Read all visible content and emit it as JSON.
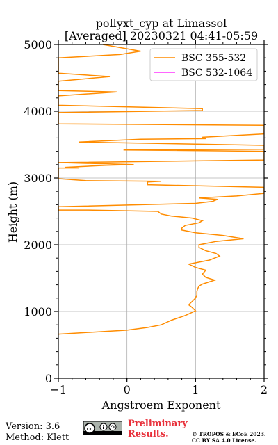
{
  "footer": {
    "version": "Version: 3.6",
    "method": "Method: Klett",
    "preliminary_line1": "Preliminary",
    "preliminary_line2": "Results.",
    "copyright_line1": "© TROPOS & ECoE 2023.",
    "copyright_line2": "CC BY SA 4.0 License.",
    "badge_icon": "cc-by-sa-icon"
  },
  "chart_data": {
    "type": "line",
    "title": "pollyxt_cyp at Limassol",
    "subtitle": "[Averaged] 20230321 04:41-05:59",
    "xlabel": "Angstroem Exponent",
    "ylabel": "Height (m)",
    "xlim": [
      -1,
      2
    ],
    "ylim": [
      0,
      5000
    ],
    "xticks": [
      -1,
      0,
      1,
      2
    ],
    "xtick_labels": [
      "−1",
      "0",
      "1",
      "2"
    ],
    "yticks": [
      0,
      1000,
      2000,
      3000,
      4000,
      5000
    ],
    "ytick_labels": [
      "0",
      "1000",
      "2000",
      "3000",
      "4000",
      "5000"
    ],
    "grid": true,
    "legend_position": "top-right",
    "series": [
      {
        "name": "BSC 355-532",
        "color": "#ff8c00",
        "points": [
          [
            -1.0,
            660
          ],
          [
            0.0,
            720
          ],
          [
            0.3,
            760
          ],
          [
            0.5,
            800
          ],
          [
            0.65,
            870
          ],
          [
            0.85,
            940
          ],
          [
            1.0,
            1010
          ],
          [
            0.95,
            1060
          ],
          [
            0.9,
            1100
          ],
          [
            0.95,
            1150
          ],
          [
            1.0,
            1200
          ],
          [
            1.02,
            1250
          ],
          [
            1.02,
            1300
          ],
          [
            1.03,
            1340
          ],
          [
            1.05,
            1380
          ],
          [
            1.1,
            1410
          ],
          [
            1.28,
            1470
          ],
          [
            1.15,
            1510
          ],
          [
            1.1,
            1560
          ],
          [
            1.15,
            1620
          ],
          [
            1.0,
            1660
          ],
          [
            0.9,
            1710
          ],
          [
            1.2,
            1770
          ],
          [
            1.35,
            1830
          ],
          [
            1.3,
            1870
          ],
          [
            1.15,
            1910
          ],
          [
            1.05,
            1960
          ],
          [
            1.05,
            2000
          ],
          [
            1.3,
            2050
          ],
          [
            1.7,
            2090
          ],
          [
            1.4,
            2140
          ],
          [
            1.0,
            2180
          ],
          [
            0.8,
            2220
          ],
          [
            0.8,
            2250
          ],
          [
            0.85,
            2290
          ],
          [
            1.05,
            2330
          ],
          [
            1.1,
            2360
          ],
          [
            0.95,
            2400
          ],
          [
            0.65,
            2430
          ],
          [
            0.5,
            2460
          ],
          [
            0.45,
            2500
          ],
          [
            -0.6,
            2520
          ],
          [
            -1.0,
            2520
          ],
          [
            -1.0,
            2570
          ],
          [
            1.0,
            2620
          ],
          [
            1.25,
            2650
          ],
          [
            1.32,
            2680
          ],
          [
            1.05,
            2700
          ],
          [
            1.6,
            2730
          ],
          [
            2.0,
            2770
          ],
          [
            2.0,
            2860
          ],
          [
            0.3,
            2900
          ],
          [
            0.3,
            2940
          ],
          [
            0.5,
            2950
          ],
          [
            -0.6,
            2960
          ],
          [
            -1.0,
            2990
          ],
          [
            -1.0,
            3150
          ],
          [
            -0.7,
            3150
          ],
          [
            -0.9,
            3160
          ],
          [
            -0.3,
            3190
          ],
          [
            0.1,
            3200
          ],
          [
            -1.0,
            3230
          ],
          [
            2.0,
            3270
          ],
          [
            2.0,
            3400
          ],
          [
            -0.05,
            3420
          ],
          [
            2.0,
            3430
          ],
          [
            2.0,
            3490
          ],
          [
            -0.7,
            3540
          ],
          [
            0.2,
            3580
          ],
          [
            1.15,
            3590
          ],
          [
            1.1,
            3610
          ],
          [
            2.0,
            3660
          ],
          [
            2.0,
            3790
          ],
          [
            -1.0,
            3810
          ],
          [
            -1.0,
            3980
          ],
          [
            1.1,
            4010
          ],
          [
            1.1,
            4040
          ],
          [
            -1.0,
            4090
          ],
          [
            -1.0,
            4230
          ],
          [
            -0.15,
            4290
          ],
          [
            -1.0,
            4310
          ],
          [
            -1.0,
            4450
          ],
          [
            -0.25,
            4520
          ],
          [
            -1.0,
            4570
          ],
          [
            -1.0,
            4800
          ],
          [
            -0.1,
            4850
          ],
          [
            0.2,
            4900
          ],
          [
            -0.35,
            5000
          ]
        ]
      },
      {
        "name": "BSC 532-1064",
        "color": "#ff33ff",
        "points": []
      }
    ]
  }
}
